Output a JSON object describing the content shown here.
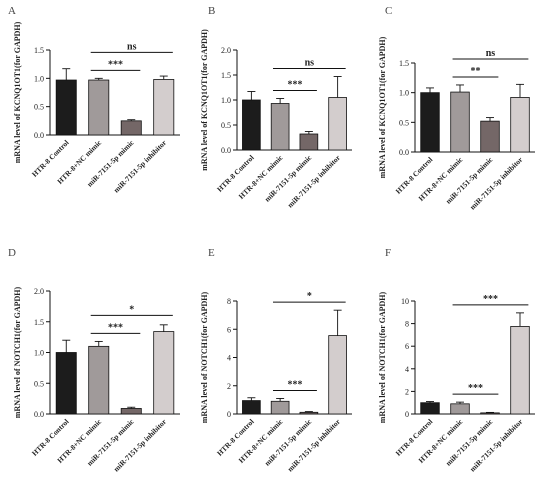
{
  "colors": {
    "bar_fills": [
      "#1c1c1c",
      "#a09a9a",
      "#746767",
      "#d3cdcd"
    ],
    "axis": "#111111"
  },
  "chart_data": [
    {
      "type": "bar",
      "panel": "A",
      "ylabel": "mRNA level of KCNQ1OT1(for GAPDH)",
      "categories": [
        "HTR-8 Control",
        "HTR-8+NC mimic",
        "miR-7151-5p mimic",
        "miR-7151-5p inhibitor"
      ],
      "values": [
        0.97,
        0.97,
        0.25,
        0.98
      ],
      "errors": [
        0.2,
        0.03,
        0.02,
        0.06
      ],
      "ylim": [
        0,
        1.5
      ],
      "yticks": [
        "0.0",
        "0.5",
        "1.0",
        "1.5"
      ],
      "brackets": [
        {
          "from": 1,
          "to": 2,
          "label": "***"
        },
        {
          "from": 1,
          "to": 3,
          "label": "ns"
        }
      ]
    },
    {
      "type": "bar",
      "panel": "B",
      "ylabel": "mRNA level of KCNQ1OT1(for GAPDH)",
      "categories": [
        "HTR-8 Control",
        "HTR-8+NC mimic",
        "miR-7151-5p mimic",
        "miR-7151-5p inhibitor"
      ],
      "values": [
        1.0,
        0.93,
        0.32,
        1.05
      ],
      "errors": [
        0.17,
        0.1,
        0.05,
        0.42
      ],
      "ylim": [
        0,
        2.0
      ],
      "yticks": [
        "0.0",
        "0.5",
        "1.0",
        "1.5",
        "2.0"
      ],
      "brackets": [
        {
          "from": 1,
          "to": 2,
          "label": "***"
        },
        {
          "from": 1,
          "to": 3,
          "label": "ns"
        }
      ]
    },
    {
      "type": "bar",
      "panel": "C",
      "ylabel": "mRNA level of KCNQ1OT1(for GAPDH)",
      "categories": [
        "HTR-8 Control",
        "HTR-8+NC mimic",
        "miR-7151-5p mimic",
        "miR-7151-5p inhibitor"
      ],
      "values": [
        1.0,
        1.01,
        0.52,
        0.92
      ],
      "errors": [
        0.08,
        0.12,
        0.06,
        0.22
      ],
      "ylim": [
        0,
        1.5
      ],
      "yticks": [
        "0.0",
        "0.5",
        "1.0",
        "1.5"
      ],
      "brackets": [
        {
          "from": 1,
          "to": 2,
          "label": "**"
        },
        {
          "from": 1,
          "to": 3,
          "label": "ns"
        }
      ]
    },
    {
      "type": "bar",
      "panel": "D",
      "ylabel": "mRNA level of NOTCH1(for GAPDH)",
      "categories": [
        "HTR-8 Control",
        "HTR-8+NC mimic",
        "miR-7151-5p mimic",
        "miR-7151-5p inhibitor"
      ],
      "values": [
        1.0,
        1.1,
        0.09,
        1.34
      ],
      "errors": [
        0.2,
        0.08,
        0.02,
        0.11
      ],
      "ylim": [
        0,
        2.0
      ],
      "yticks": [
        "0.0",
        "0.5",
        "1.0",
        "1.5",
        "2.0"
      ],
      "brackets": [
        {
          "from": 1,
          "to": 2,
          "label": "***"
        },
        {
          "from": 1,
          "to": 3,
          "label": "*"
        }
      ]
    },
    {
      "type": "bar",
      "panel": "E",
      "ylabel": "mRNA level of NOTCH1(for GAPDH)",
      "categories": [
        "HTR-8 Control",
        "HTR-8+NC mimic",
        "miR-7151-5p mimic",
        "miR-7151-5p inhibitor"
      ],
      "values": [
        0.95,
        0.9,
        0.12,
        5.55
      ],
      "errors": [
        0.2,
        0.2,
        0.05,
        1.8
      ],
      "ylim": [
        0,
        8
      ],
      "yticks": [
        "0",
        "2",
        "4",
        "6",
        "8"
      ],
      "brackets": [
        {
          "from": 1,
          "to": 2,
          "label": "***"
        },
        {
          "from": 1,
          "to": 3,
          "label": "*"
        }
      ]
    },
    {
      "type": "bar",
      "panel": "F",
      "ylabel": "mRNA level of NOTCH1(for GAPDH)",
      "categories": [
        "HTR-8 Control",
        "HTR-8+NC mimic",
        "miR-7151-5p mimic",
        "miR-7151-5p inhibitor"
      ],
      "values": [
        1.0,
        0.9,
        0.1,
        7.75
      ],
      "errors": [
        0.1,
        0.15,
        0.04,
        1.2
      ],
      "ylim": [
        0,
        10
      ],
      "yticks": [
        "0",
        "2",
        "4",
        "6",
        "8",
        "10"
      ],
      "brackets": [
        {
          "from": 1,
          "to": 2,
          "label": "***"
        },
        {
          "from": 1,
          "to": 3,
          "label": "***"
        }
      ]
    }
  ]
}
